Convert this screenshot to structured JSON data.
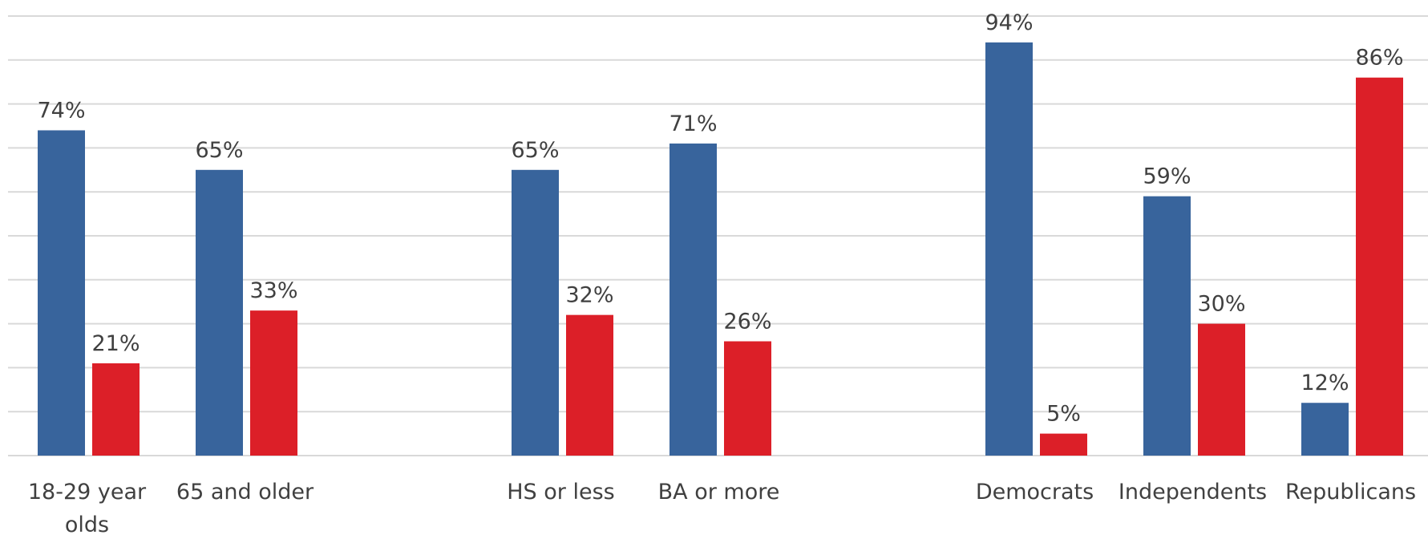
{
  "chart_data": {
    "type": "bar",
    "title": "",
    "xlabel": "",
    "ylabel": "",
    "ylim": [
      0,
      100
    ],
    "grid": true,
    "legend": "none",
    "colors": {
      "series_a": "#38649c",
      "series_b": "#dc1f28",
      "grid": "#d9d9d9",
      "text": "#404040"
    },
    "groups": [
      {
        "categories": [
          {
            "label_lines": [
              "18-29 year",
              "olds"
            ],
            "values": [
              74,
              21
            ],
            "data_labels": [
              "74%",
              "21%"
            ]
          },
          {
            "label_lines": [
              "65 and older"
            ],
            "values": [
              65,
              33
            ],
            "data_labels": [
              "65%",
              "33%"
            ]
          }
        ]
      },
      {
        "categories": [
          {
            "label_lines": [
              "HS or less"
            ],
            "values": [
              65,
              32
            ],
            "data_labels": [
              "65%",
              "32%"
            ]
          },
          {
            "label_lines": [
              "BA or more"
            ],
            "values": [
              71,
              26
            ],
            "data_labels": [
              "71%",
              "26%"
            ]
          }
        ]
      },
      {
        "categories": [
          {
            "label_lines": [
              "Democrats"
            ],
            "values": [
              94,
              5
            ],
            "data_labels": [
              "94%",
              "5%"
            ]
          },
          {
            "label_lines": [
              "Independents"
            ],
            "values": [
              59,
              30
            ],
            "data_labels": [
              "59%",
              "30%"
            ]
          },
          {
            "label_lines": [
              "Republicans"
            ],
            "values": [
              12,
              86
            ],
            "data_labels": [
              "12%",
              "86%"
            ]
          }
        ]
      }
    ]
  }
}
